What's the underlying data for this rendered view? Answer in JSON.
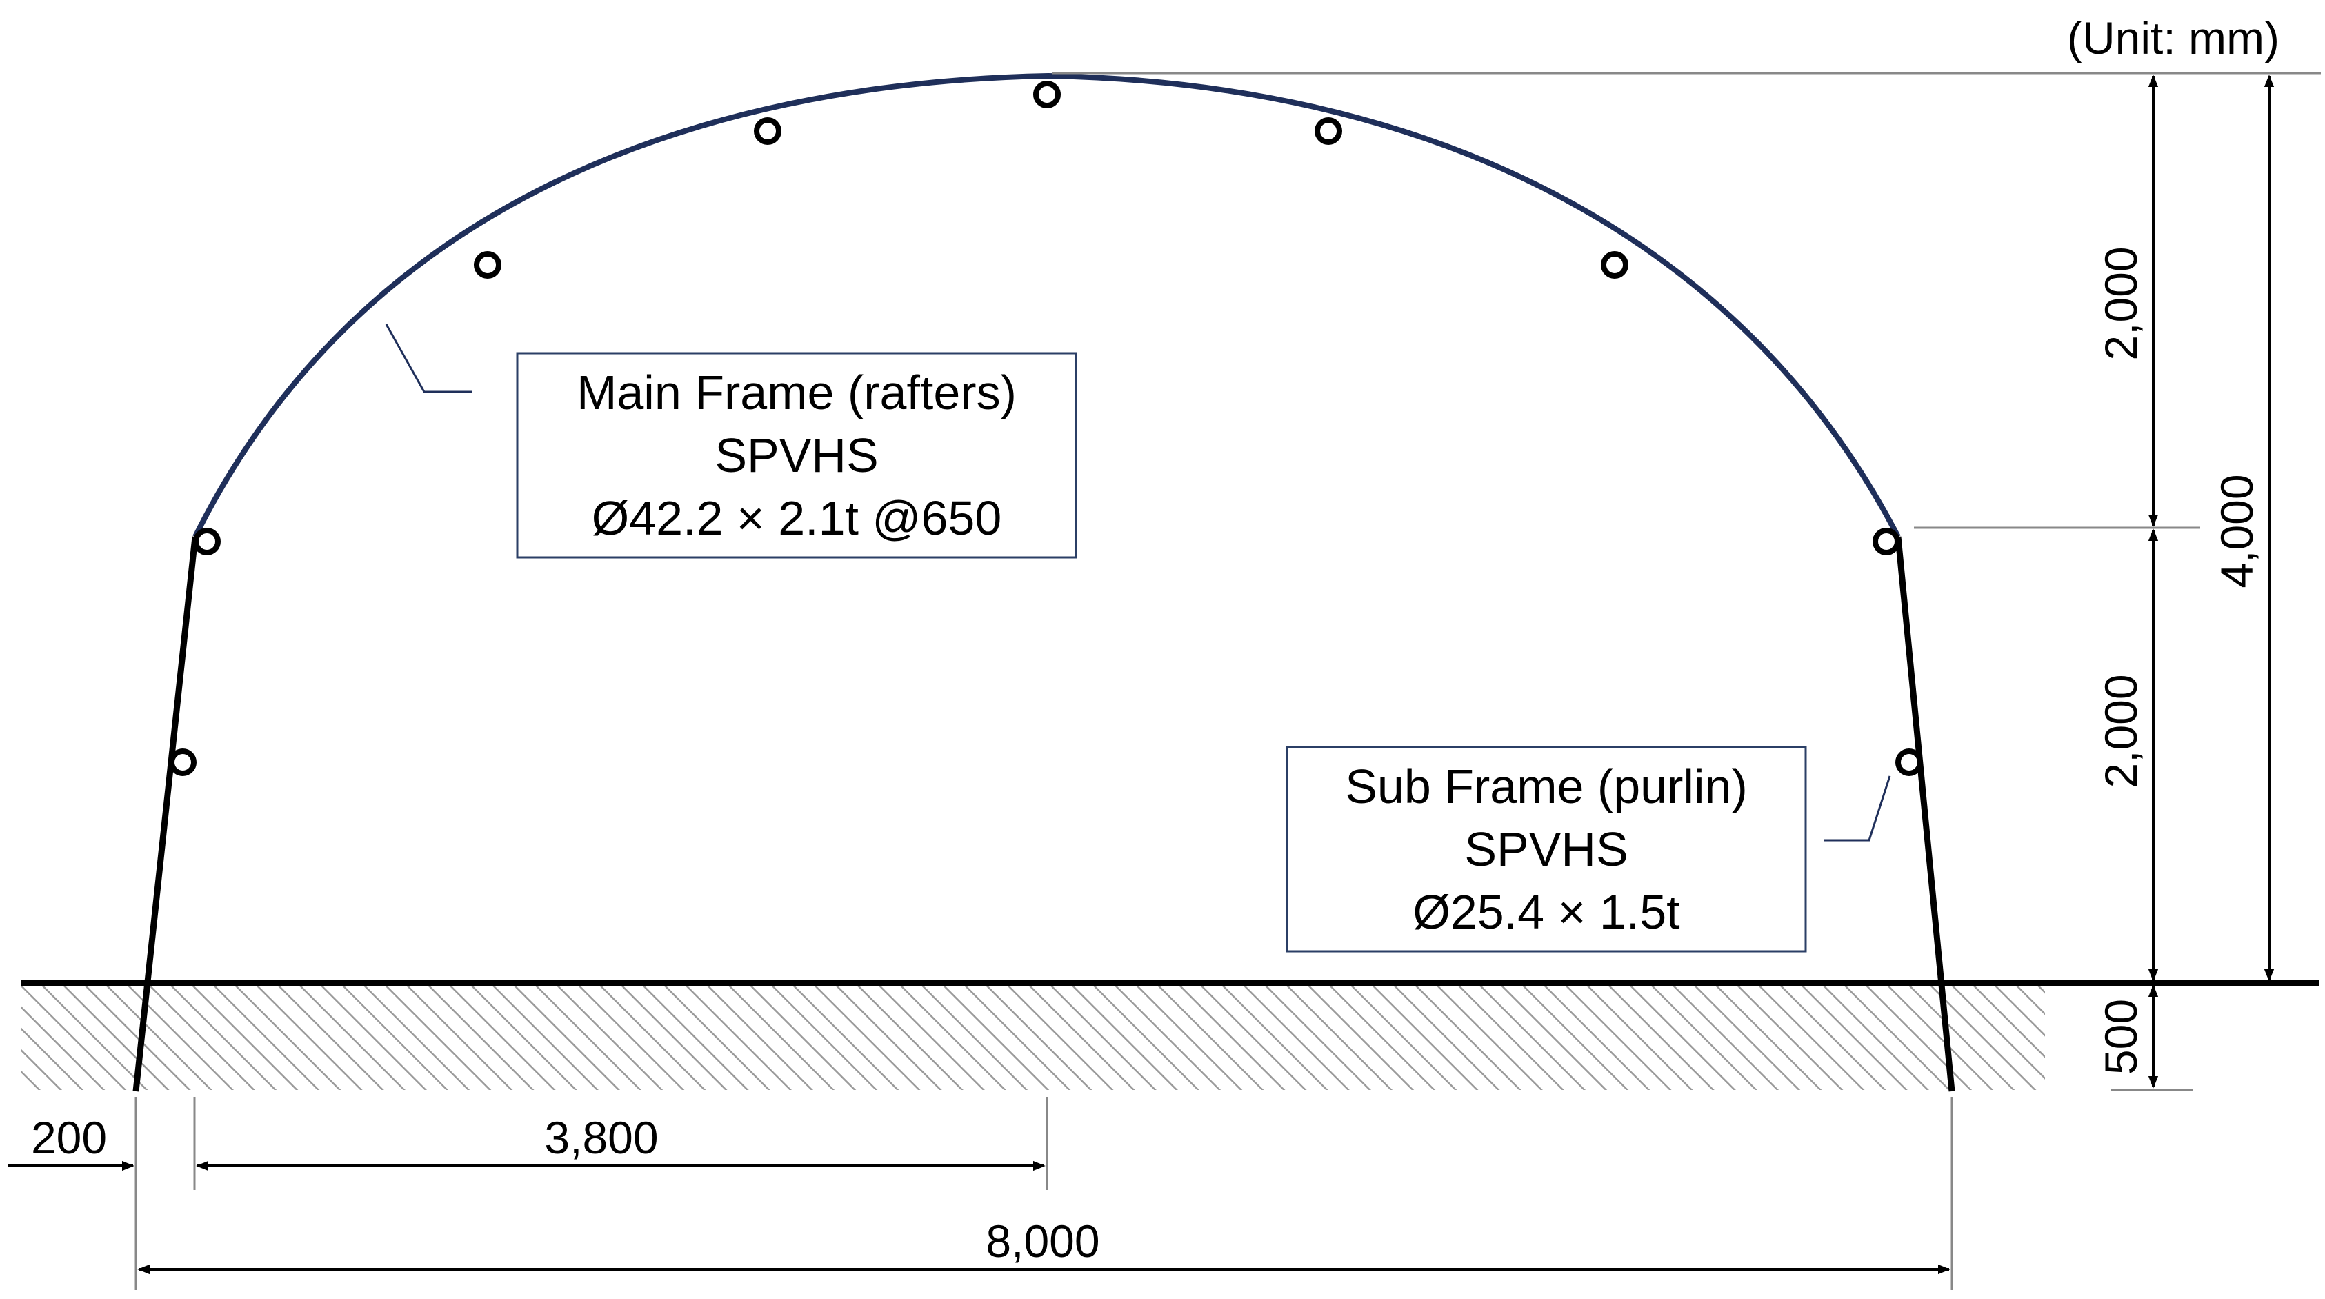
{
  "unit_note": "(Unit: mm)",
  "main_frame": {
    "line1": "Main Frame (rafters)",
    "line2": "SPVHS",
    "line3": "Ø42.2 × 2.1t @650"
  },
  "sub_frame": {
    "line1": "Sub Frame (purlin)",
    "line2": "SPVHS",
    "line3": "Ø25.4 × 1.5t"
  },
  "dimensions": {
    "top_height": "2,000",
    "lower_height": "2,000",
    "total_height": "4,000",
    "embedment": "500",
    "edge_offset": "200",
    "half_span": "3,800",
    "full_span": "8,000"
  },
  "colors": {
    "frame_arch": "#1f2f5a",
    "frame_leg": "#000000",
    "ground_hatch": "#9a9a9a",
    "box_border": "#2b3f66"
  }
}
